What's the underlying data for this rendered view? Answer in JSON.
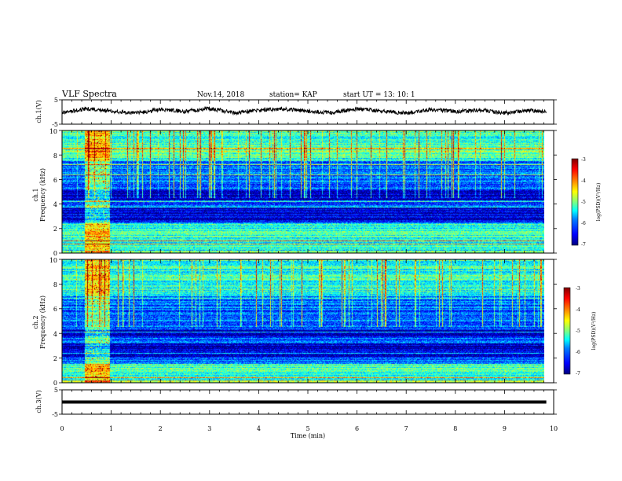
{
  "header": {
    "title": "VLF Spectra",
    "date": "Nov.14, 2018",
    "station": "station= KAP",
    "start_ut": "start  UT =   13: 10: 1"
  },
  "chart_data": [
    {
      "type": "line",
      "panel": "ch1-waveform",
      "ylabel": "ch.1(V)",
      "ylim": [
        -5,
        5
      ],
      "y_ticks": [
        "5",
        "-5"
      ],
      "xlim": [
        0,
        10
      ],
      "series": [
        {
          "x": [
            0,
            0.5,
            1.0,
            1.5,
            2.0,
            2.5,
            3.0,
            3.5,
            4.0,
            4.5,
            5.0,
            5.5,
            6.0,
            6.5,
            7.0,
            7.5,
            8.0,
            8.5,
            9.0,
            9.5,
            9.85
          ],
          "values": [
            -0.3,
            1.3,
            0.5,
            -0.6,
            1.1,
            0.2,
            1.5,
            -0.4,
            0.9,
            1.2,
            0.3,
            -0.3,
            1.3,
            0.4,
            -0.5,
            1.0,
            0.2,
            0.8,
            -0.4,
            0.6,
            0.2
          ]
        }
      ]
    },
    {
      "type": "heatmap",
      "panel": "ch1-spectrogram",
      "ylabel": "ch.1",
      "ylabel2": "Frequency (kHz)",
      "ylim": [
        0,
        10
      ],
      "y_ticks": [
        "0",
        "2",
        "4",
        "6",
        "8",
        "10"
      ],
      "xlim": [
        0,
        10
      ],
      "data_extent_min": [
        0,
        9.85
      ],
      "colorbar": {
        "label": "log(PSD)(V²/Hz)",
        "range": [
          -7,
          -3
        ],
        "ticks": [
          "-3",
          "-4",
          "-5",
          "-6",
          "-7"
        ]
      },
      "bright_segment_min": [
        0.45,
        0.98
      ],
      "dark_bands_khz": [
        [
          2.5,
          3.7
        ],
        [
          4.2,
          5.2
        ]
      ],
      "enhanced_bands_khz": [
        [
          0.2,
          2.4
        ],
        [
          7.5,
          10
        ]
      ]
    },
    {
      "type": "heatmap",
      "panel": "ch2-spectrogram",
      "ylabel": "ch.2",
      "ylabel2": "Frequency (kHz)",
      "ylim": [
        0,
        10
      ],
      "y_ticks": [
        "0",
        "2",
        "4",
        "6",
        "8",
        "10"
      ],
      "xlim": [
        0,
        10
      ],
      "data_extent_min": [
        0,
        9.85
      ],
      "colorbar": {
        "label": "log(PSD)(V²/Hz)",
        "range": [
          -7,
          -3
        ],
        "ticks": [
          "-3",
          "-4",
          "-5",
          "-6",
          "-7"
        ]
      },
      "bright_segment_min": [
        0.45,
        0.98
      ],
      "dark_bands_khz": [
        [
          2.0,
          3.2
        ],
        [
          3.6,
          4.3
        ]
      ],
      "enhanced_bands_khz": [
        [
          0.3,
          1.5
        ],
        [
          7.0,
          10
        ]
      ]
    },
    {
      "type": "line",
      "panel": "ch3-waveform",
      "ylabel": "ch.3(V)",
      "ylim": [
        -5,
        5
      ],
      "y_ticks": [
        "5",
        "-5"
      ],
      "xlim": [
        0,
        10
      ],
      "series": [
        {
          "x": [
            0,
            9.85
          ],
          "values": [
            0,
            0
          ]
        }
      ]
    }
  ],
  "x_axis": {
    "label": "Time  (min)",
    "ticks": [
      "0",
      "1",
      "2",
      "3",
      "4",
      "5",
      "6",
      "7",
      "8",
      "9",
      "10"
    ]
  },
  "colors": {
    "colormap": [
      "#00007f",
      "#0000ff",
      "#007fff",
      "#00ffff",
      "#7fff7f",
      "#ffff00",
      "#ff7f00",
      "#ff0000",
      "#7f0000"
    ]
  }
}
